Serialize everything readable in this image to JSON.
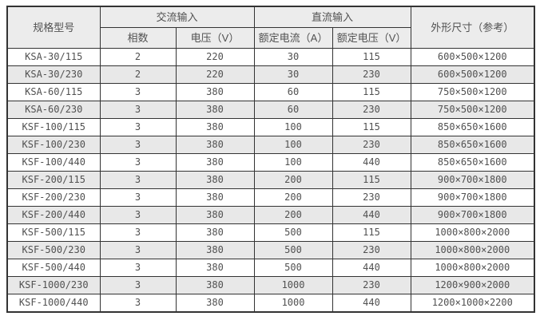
{
  "chart_data": {
    "type": "table",
    "title": "",
    "header": {
      "model": "规格型号",
      "ac_group": "交流输入",
      "dc_group": "直流输入",
      "dimensions": "外形尺寸（参考）",
      "phases": "相数",
      "ac_voltage": "电压（V）",
      "dc_current": "额定电流（A）",
      "dc_voltage": "额定电压（V）"
    },
    "column_keys": [
      "model",
      "phases",
      "ac_voltage",
      "dc_current",
      "dc_voltage",
      "dimensions"
    ],
    "rows": [
      {
        "model": "KSA-30/115",
        "phases": "2",
        "ac_voltage": "220",
        "dc_current": "30",
        "dc_voltage": "115",
        "dimensions": "600×500×1200"
      },
      {
        "model": "KSA-30/230",
        "phases": "2",
        "ac_voltage": "220",
        "dc_current": "30",
        "dc_voltage": "230",
        "dimensions": "600×500×1200"
      },
      {
        "model": "KSA-60/115",
        "phases": "3",
        "ac_voltage": "380",
        "dc_current": "60",
        "dc_voltage": "115",
        "dimensions": "750×500×1200"
      },
      {
        "model": "KSA-60/230",
        "phases": "3",
        "ac_voltage": "380",
        "dc_current": "60",
        "dc_voltage": "230",
        "dimensions": "750×500×1200"
      },
      {
        "model": "KSF-100/115",
        "phases": "3",
        "ac_voltage": "380",
        "dc_current": "100",
        "dc_voltage": "115",
        "dimensions": "850×650×1600"
      },
      {
        "model": "KSF-100/230",
        "phases": "3",
        "ac_voltage": "380",
        "dc_current": "100",
        "dc_voltage": "230",
        "dimensions": "850×650×1600"
      },
      {
        "model": "KSF-100/440",
        "phases": "3",
        "ac_voltage": "380",
        "dc_current": "100",
        "dc_voltage": "440",
        "dimensions": "850×650×1600"
      },
      {
        "model": "KSF-200/115",
        "phases": "3",
        "ac_voltage": "380",
        "dc_current": "200",
        "dc_voltage": "115",
        "dimensions": "900×700×1800"
      },
      {
        "model": "KSF-200/230",
        "phases": "3",
        "ac_voltage": "380",
        "dc_current": "200",
        "dc_voltage": "230",
        "dimensions": "900×700×1800"
      },
      {
        "model": "KSF-200/440",
        "phases": "3",
        "ac_voltage": "380",
        "dc_current": "200",
        "dc_voltage": "440",
        "dimensions": "900×700×1800"
      },
      {
        "model": "KSF-500/115",
        "phases": "3",
        "ac_voltage": "380",
        "dc_current": "500",
        "dc_voltage": "115",
        "dimensions": "1000×800×2000"
      },
      {
        "model": "KSF-500/230",
        "phases": "3",
        "ac_voltage": "380",
        "dc_current": "500",
        "dc_voltage": "230",
        "dimensions": "1000×800×2000"
      },
      {
        "model": "KSF-500/440",
        "phases": "3",
        "ac_voltage": "380",
        "dc_current": "500",
        "dc_voltage": "440",
        "dimensions": "1000×800×2000"
      },
      {
        "model": "KSF-1000/230",
        "phases": "3",
        "ac_voltage": "380",
        "dc_current": "1000",
        "dc_voltage": "230",
        "dimensions": "1200×900×2000"
      },
      {
        "model": "KSF-1000/440",
        "phases": "3",
        "ac_voltage": "380",
        "dc_current": "1000",
        "dc_voltage": "440",
        "dimensions": "1200×1000×2200"
      }
    ],
    "layout": {
      "striped_rows": "even rows shaded",
      "grid": "on"
    },
    "colors": {
      "border": "#333333",
      "header_bg": "#ececec",
      "stripe_bg": "#e8e8e8",
      "row_bg": "#ffffff",
      "text": "#515151"
    }
  }
}
